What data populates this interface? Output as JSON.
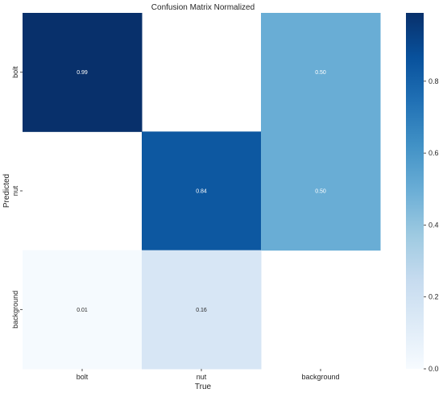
{
  "chart_data": {
    "type": "heatmap",
    "title": "Confusion Matrix Normalized",
    "xlabel": "True",
    "ylabel": "Predicted",
    "x_categories": [
      "bolt",
      "nut",
      "background"
    ],
    "y_categories": [
      "bolt",
      "nut",
      "background"
    ],
    "values": [
      [
        0.99,
        null,
        0.5
      ],
      [
        null,
        0.84,
        0.5
      ],
      [
        0.01,
        0.16,
        null
      ]
    ],
    "cell_labels": [
      [
        "0.99",
        "",
        "0.50"
      ],
      [
        "",
        "0.84",
        "0.50"
      ],
      [
        "0.01",
        "0.16",
        ""
      ]
    ],
    "colorbar": {
      "range": [
        0.0,
        0.99
      ],
      "ticks": [
        0.0,
        0.2,
        0.4,
        0.6,
        0.8
      ],
      "tick_labels": [
        "0.0",
        "0.2",
        "0.4",
        "0.6",
        "0.8"
      ]
    },
    "colormap": "Blues",
    "colors": [
      "#f7fbff",
      "#deebf7",
      "#c6dbef",
      "#9ecae1",
      "#6baed6",
      "#4292c6",
      "#2171b5",
      "#08519c",
      "#08306b"
    ]
  }
}
